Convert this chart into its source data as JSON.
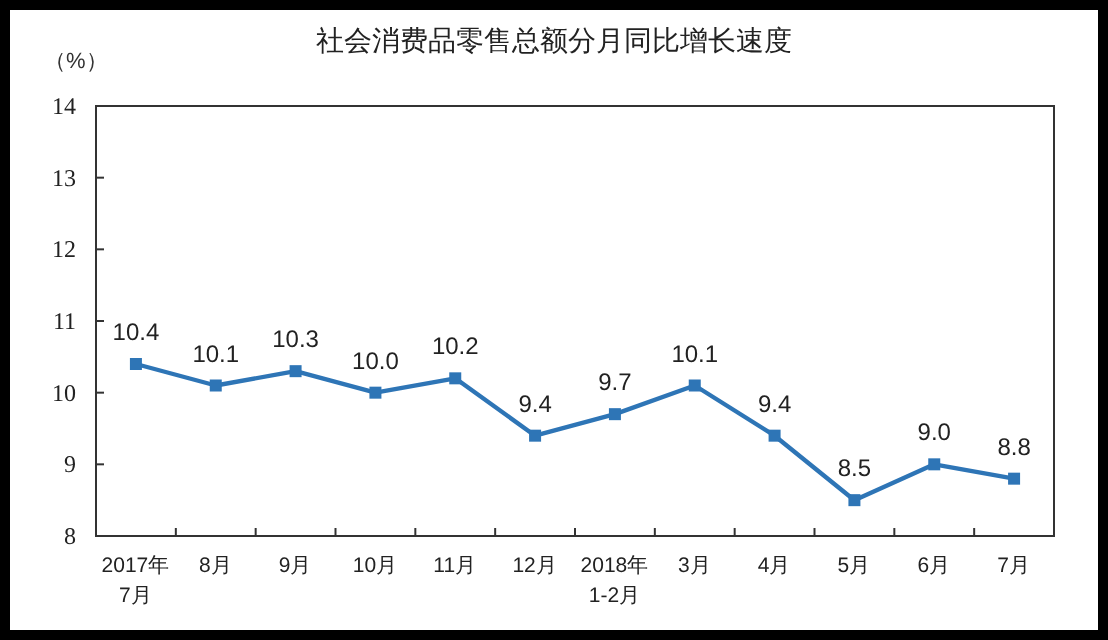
{
  "chart_data": {
    "type": "line",
    "title": "社会消费品零售总额分月同比增长速度",
    "ylabel": "（%）",
    "categories": [
      "2017年\n7月",
      "8月",
      "9月",
      "10月",
      "11月",
      "12月",
      "2018年\n1-2月",
      "3月",
      "4月",
      "5月",
      "6月",
      "7月"
    ],
    "series": [
      {
        "color": "#2e75b6",
        "values": [
          10.4,
          10.1,
          10.3,
          10.0,
          10.2,
          9.4,
          9.7,
          10.1,
          9.4,
          8.5,
          9.0,
          8.8
        ],
        "value_labels": [
          "10.4",
          "10.1",
          "10.3",
          "10.0",
          "10.2",
          "9.4",
          "9.7",
          "10.1",
          "9.4",
          "8.5",
          "9.0",
          "8.8"
        ]
      }
    ],
    "ylim": [
      8,
      14
    ],
    "yticks": [
      8,
      9,
      10,
      11,
      12,
      13,
      14
    ],
    "marker": "square",
    "line_style": "solid"
  }
}
